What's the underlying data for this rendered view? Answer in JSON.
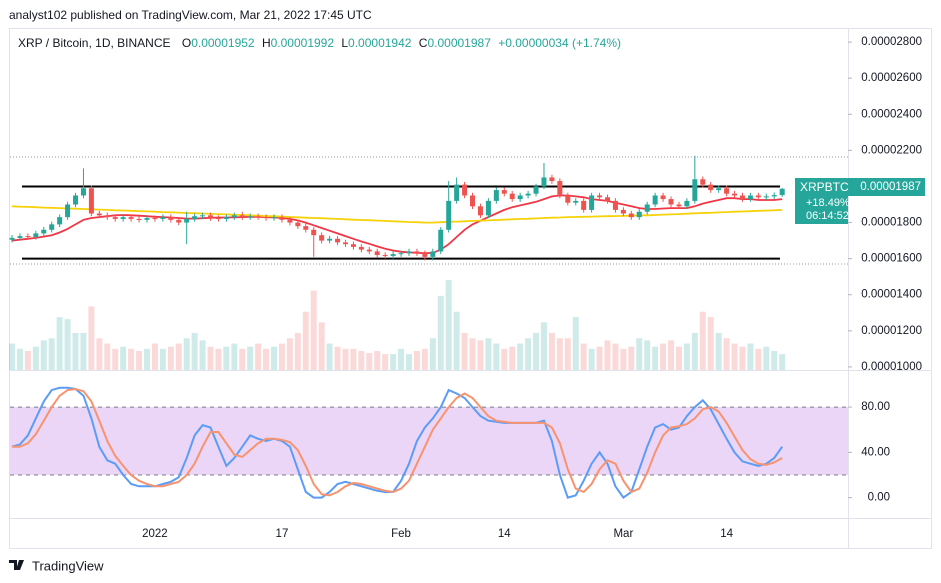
{
  "header": {
    "published": "analyst102 published on TradingView.com, Mar 21, 2022 17:45 UTC"
  },
  "legend": {
    "symbol": "XRP / Bitcoin, 1D, BINANCE",
    "fields": [
      {
        "key": "O",
        "value": "0.00001952"
      },
      {
        "key": "H",
        "value": "0.00001992"
      },
      {
        "key": "L",
        "value": "0.00001942"
      },
      {
        "key": "C",
        "value": "0.00001987"
      }
    ],
    "change": "+0.00000034 (+1.74%)"
  },
  "price_tag": {
    "symbol": "XRPBTC",
    "price": "0.00001987",
    "change": "+18.49%",
    "countdown": "06:14:52"
  },
  "footer": {
    "brand": "TradingView"
  },
  "chart_data": [
    {
      "type": "candlestick",
      "categories": [
        null,
        null,
        null,
        null,
        null,
        null,
        null,
        null,
        null,
        null,
        null,
        null,
        null,
        null,
        null,
        null,
        null,
        null,
        "2022",
        null,
        null,
        null,
        null,
        null,
        null,
        null,
        null,
        null,
        null,
        null,
        null,
        null,
        null,
        null,
        "17",
        null,
        null,
        null,
        null,
        null,
        null,
        null,
        null,
        null,
        null,
        null,
        null,
        null,
        null,
        "Feb",
        null,
        null,
        null,
        null,
        null,
        null,
        null,
        null,
        null,
        null,
        null,
        null,
        "14",
        null,
        null,
        null,
        null,
        null,
        null,
        null,
        null,
        null,
        null,
        null,
        null,
        null,
        null,
        "Mar",
        null,
        null,
        null,
        null,
        null,
        null,
        null,
        null,
        null,
        null,
        null,
        null,
        "14",
        null,
        null,
        null,
        null,
        null,
        null,
        null
      ],
      "open": [
        1.705e-05,
        1.715e-05,
        1.725e-05,
        1.72e-05,
        1.74e-05,
        1.76e-05,
        1.79e-05,
        1.83e-05,
        1.9e-05,
        1.95e-05,
        1.99e-05,
        1.85e-05,
        1.84e-05,
        1.83e-05,
        1.82e-05,
        1.83e-05,
        1.82e-05,
        1.815e-05,
        1.825e-05,
        1.82e-05,
        1.83e-05,
        1.815e-05,
        1.8e-05,
        1.82e-05,
        1.835e-05,
        1.84e-05,
        1.825e-05,
        1.82e-05,
        1.83e-05,
        1.84e-05,
        1.83e-05,
        1.835e-05,
        1.83e-05,
        1.825e-05,
        1.83e-05,
        1.815e-05,
        1.8e-05,
        1.78e-05,
        1.76e-05,
        1.73e-05,
        1.7e-05,
        1.71e-05,
        1.69e-05,
        1.68e-05,
        1.665e-05,
        1.65e-05,
        1.64e-05,
        1.62e-05,
        1.615e-05,
        1.625e-05,
        1.63e-05,
        1.64e-05,
        1.63e-05,
        1.61e-05,
        1.64e-05,
        1.76e-05,
        1.92e-05,
        2.01e-05,
        1.95e-05,
        1.89e-05,
        1.84e-05,
        1.92e-05,
        1.98e-05,
        1.96e-05,
        1.93e-05,
        1.95e-05,
        1.96e-05,
        2e-05,
        2.05e-05,
        2.03e-05,
        1.95e-05,
        1.91e-05,
        1.92e-05,
        1.87e-05,
        1.95e-05,
        1.94e-05,
        1.92e-05,
        1.87e-05,
        1.85e-05,
        1.83e-05,
        1.86e-05,
        1.9e-05,
        1.95e-05,
        1.93e-05,
        1.9e-05,
        1.89e-05,
        1.92e-05,
        2.04e-05,
        2.01e-05,
        1.98e-05,
        1.99e-05,
        1.96e-05,
        1.95e-05,
        1.93e-05,
        1.95e-05,
        1.94e-05,
        1.945e-05,
        1.952e-05
      ],
      "high": [
        1.73e-05,
        1.74e-05,
        1.74e-05,
        1.755e-05,
        1.775e-05,
        1.805e-05,
        1.845e-05,
        1.915e-05,
        1.965e-05,
        2.1e-05,
        2.005e-05,
        1.865e-05,
        1.855e-05,
        1.845e-05,
        1.845e-05,
        1.845e-05,
        1.835e-05,
        1.84e-05,
        1.84e-05,
        1.845e-05,
        1.845e-05,
        1.83e-05,
        1.86e-05,
        1.85e-05,
        1.855e-05,
        1.855e-05,
        1.84e-05,
        1.845e-05,
        1.855e-05,
        1.86e-05,
        1.85e-05,
        1.85e-05,
        1.845e-05,
        1.845e-05,
        1.845e-05,
        1.83e-05,
        1.815e-05,
        1.795e-05,
        1.775e-05,
        1.745e-05,
        1.725e-05,
        1.725e-05,
        1.705e-05,
        1.695e-05,
        1.68e-05,
        1.665e-05,
        1.655e-05,
        1.635e-05,
        1.64e-05,
        1.645e-05,
        1.655e-05,
        1.655e-05,
        1.645e-05,
        1.655e-05,
        1.775e-05,
        2.03e-05,
        2.05e-05,
        2.025e-05,
        1.965e-05,
        1.905e-05,
        1.935e-05,
        1.995e-05,
        1.995e-05,
        1.975e-05,
        1.965e-05,
        1.975e-05,
        2.015e-05,
        2.13e-05,
        2.065e-05,
        2.045e-05,
        1.965e-05,
        1.935e-05,
        1.935e-05,
        1.965e-05,
        1.965e-05,
        1.955e-05,
        1.935e-05,
        1.885e-05,
        1.865e-05,
        1.875e-05,
        1.915e-05,
        1.965e-05,
        1.965e-05,
        1.945e-05,
        1.915e-05,
        1.935e-05,
        2.17e-05,
        2.055e-05,
        2.025e-05,
        2.005e-05,
        2.005e-05,
        1.975e-05,
        1.965e-05,
        1.965e-05,
        1.965e-05,
        1.96e-05,
        1.967e-05,
        1.992e-05
      ],
      "low": [
        1.69e-05,
        1.7e-05,
        1.705e-05,
        1.705e-05,
        1.725e-05,
        1.745e-05,
        1.775e-05,
        1.815e-05,
        1.885e-05,
        1.935e-05,
        1.835e-05,
        1.825e-05,
        1.815e-05,
        1.805e-05,
        1.805e-05,
        1.805e-05,
        1.8e-05,
        1.8e-05,
        1.805e-05,
        1.805e-05,
        1.8e-05,
        1.785e-05,
        1.68e-05,
        1.805e-05,
        1.82e-05,
        1.81e-05,
        1.805e-05,
        1.805e-05,
        1.815e-05,
        1.815e-05,
        1.815e-05,
        1.815e-05,
        1.81e-05,
        1.81e-05,
        1.8e-05,
        1.785e-05,
        1.765e-05,
        1.745e-05,
        1.61e-05,
        1.685e-05,
        1.685e-05,
        1.675e-05,
        1.665e-05,
        1.65e-05,
        1.635e-05,
        1.625e-05,
        1.605e-05,
        1.6e-05,
        1.6e-05,
        1.61e-05,
        1.615e-05,
        1.615e-05,
        1.59e-05,
        1.59e-05,
        1.625e-05,
        1.745e-05,
        1.905e-05,
        1.935e-05,
        1.875e-05,
        1.825e-05,
        1.825e-05,
        1.905e-05,
        1.945e-05,
        1.915e-05,
        1.915e-05,
        1.935e-05,
        1.945e-05,
        1.985e-05,
        2.015e-05,
        1.935e-05,
        1.895e-05,
        1.895e-05,
        1.855e-05,
        1.855e-05,
        1.925e-05,
        1.905e-05,
        1.855e-05,
        1.835e-05,
        1.815e-05,
        1.815e-05,
        1.845e-05,
        1.885e-05,
        1.915e-05,
        1.885e-05,
        1.875e-05,
        1.875e-05,
        1.905e-05,
        1.995e-05,
        1.965e-05,
        1.965e-05,
        1.945e-05,
        1.935e-05,
        1.915e-05,
        1.915e-05,
        1.925e-05,
        1.925e-05,
        1.93e-05,
        1.942e-05
      ],
      "close": [
        1.715e-05,
        1.725e-05,
        1.72e-05,
        1.74e-05,
        1.76e-05,
        1.79e-05,
        1.83e-05,
        1.9e-05,
        1.95e-05,
        1.99e-05,
        1.85e-05,
        1.84e-05,
        1.83e-05,
        1.82e-05,
        1.83e-05,
        1.82e-05,
        1.815e-05,
        1.825e-05,
        1.82e-05,
        1.83e-05,
        1.815e-05,
        1.8e-05,
        1.82e-05,
        1.835e-05,
        1.84e-05,
        1.825e-05,
        1.82e-05,
        1.83e-05,
        1.84e-05,
        1.83e-05,
        1.835e-05,
        1.83e-05,
        1.825e-05,
        1.83e-05,
        1.815e-05,
        1.8e-05,
        1.78e-05,
        1.76e-05,
        1.73e-05,
        1.7e-05,
        1.71e-05,
        1.69e-05,
        1.68e-05,
        1.665e-05,
        1.65e-05,
        1.64e-05,
        1.62e-05,
        1.615e-05,
        1.625e-05,
        1.63e-05,
        1.64e-05,
        1.63e-05,
        1.61e-05,
        1.64e-05,
        1.76e-05,
        1.92e-05,
        2.01e-05,
        1.95e-05,
        1.89e-05,
        1.84e-05,
        1.92e-05,
        1.98e-05,
        1.96e-05,
        1.93e-05,
        1.95e-05,
        1.96e-05,
        2e-05,
        2.05e-05,
        2.03e-05,
        1.95e-05,
        1.91e-05,
        1.92e-05,
        1.87e-05,
        1.95e-05,
        1.94e-05,
        1.92e-05,
        1.87e-05,
        1.85e-05,
        1.83e-05,
        1.86e-05,
        1.9e-05,
        1.95e-05,
        1.93e-05,
        1.9e-05,
        1.89e-05,
        1.92e-05,
        2.04e-05,
        2.01e-05,
        1.98e-05,
        1.99e-05,
        1.96e-05,
        1.95e-05,
        1.93e-05,
        1.95e-05,
        1.94e-05,
        1.945e-05,
        1.952e-05,
        1.987e-05
      ],
      "volume": [
        25,
        20,
        18,
        22,
        28,
        30,
        50,
        48,
        35,
        35,
        60,
        30,
        25,
        20,
        22,
        20,
        18,
        20,
        25,
        20,
        22,
        25,
        30,
        35,
        28,
        22,
        20,
        22,
        25,
        20,
        22,
        25,
        20,
        22,
        25,
        30,
        35,
        55,
        75,
        45,
        25,
        22,
        20,
        20,
        18,
        16,
        18,
        15,
        15,
        20,
        15,
        18,
        20,
        30,
        70,
        85,
        55,
        35,
        30,
        28,
        30,
        25,
        20,
        22,
        25,
        30,
        35,
        45,
        35,
        30,
        30,
        50,
        25,
        20,
        22,
        28,
        25,
        20,
        22,
        30,
        28,
        22,
        25,
        28,
        22,
        25,
        35,
        55,
        50,
        35,
        30,
        25,
        22,
        25,
        20,
        22,
        18,
        15
      ],
      "up_color": "#26a69a",
      "down_color": "#ef5350",
      "series": [
        {
          "color": "#f23645",
          "values": [
            1.7e-05,
            1.705e-05,
            1.71e-05,
            1.715e-05,
            1.722e-05,
            1.73e-05,
            1.745e-05,
            1.765e-05,
            1.79e-05,
            1.815e-05,
            1.825e-05,
            1.83e-05,
            1.835e-05,
            1.84e-05,
            1.842e-05,
            1.84e-05,
            1.838e-05,
            1.835e-05,
            1.832e-05,
            1.83e-05,
            1.828e-05,
            1.825e-05,
            1.822e-05,
            1.822e-05,
            1.824e-05,
            1.826e-05,
            1.828e-05,
            1.828e-05,
            1.829e-05,
            1.83e-05,
            1.832e-05,
            1.832e-05,
            1.83e-05,
            1.828e-05,
            1.825e-05,
            1.82e-05,
            1.812e-05,
            1.8e-05,
            1.785e-05,
            1.77e-05,
            1.755e-05,
            1.74e-05,
            1.725e-05,
            1.71e-05,
            1.695e-05,
            1.682e-05,
            1.668e-05,
            1.655e-05,
            1.645e-05,
            1.638e-05,
            1.635e-05,
            1.632e-05,
            1.63e-05,
            1.632e-05,
            1.65e-05,
            1.68e-05,
            1.72e-05,
            1.76e-05,
            1.79e-05,
            1.81e-05,
            1.83e-05,
            1.85e-05,
            1.87e-05,
            1.885e-05,
            1.895e-05,
            1.905e-05,
            1.915e-05,
            1.93e-05,
            1.945e-05,
            1.95e-05,
            1.95e-05,
            1.945e-05,
            1.94e-05,
            1.93e-05,
            1.925e-05,
            1.92e-05,
            1.91e-05,
            1.9e-05,
            1.89e-05,
            1.88e-05,
            1.875e-05,
            1.875e-05,
            1.878e-05,
            1.88e-05,
            1.88e-05,
            1.88e-05,
            1.89e-05,
            1.905e-05,
            1.915e-05,
            1.925e-05,
            1.935e-05,
            1.935e-05,
            1.93e-05,
            1.93e-05,
            1.925e-05,
            1.925e-05,
            1.925e-05,
            1.93e-05
          ]
        },
        {
          "color": "#f5d20a",
          "values": [
            1.89e-05,
            1.888e-05,
            1.887e-05,
            1.885e-05,
            1.883e-05,
            1.882e-05,
            1.88e-05,
            1.878e-05,
            1.877e-05,
            1.875e-05,
            1.873e-05,
            1.872e-05,
            1.87e-05,
            1.868e-05,
            1.867e-05,
            1.865e-05,
            1.863e-05,
            1.862e-05,
            1.86e-05,
            1.858e-05,
            1.857e-05,
            1.855e-05,
            1.853e-05,
            1.852e-05,
            1.85e-05,
            1.848e-05,
            1.847e-05,
            1.845e-05,
            1.843e-05,
            1.842e-05,
            1.84e-05,
            1.838e-05,
            1.836e-05,
            1.835e-05,
            1.833e-05,
            1.831e-05,
            1.829e-05,
            1.827e-05,
            1.825e-05,
            1.824e-05,
            1.822e-05,
            1.82e-05,
            1.818e-05,
            1.816e-05,
            1.814e-05,
            1.813e-05,
            1.811e-05,
            1.809e-05,
            1.807e-05,
            1.805e-05,
            1.803e-05,
            1.802e-05,
            1.8e-05,
            1.8e-05,
            1.802e-05,
            1.804e-05,
            1.805e-05,
            1.807e-05,
            1.809e-05,
            1.811e-05,
            1.812e-05,
            1.814e-05,
            1.816e-05,
            1.818e-05,
            1.82e-05,
            1.821e-05,
            1.823e-05,
            1.825e-05,
            1.827e-05,
            1.828e-05,
            1.83e-05,
            1.831e-05,
            1.832e-05,
            1.833e-05,
            1.834e-05,
            1.835e-05,
            1.836e-05,
            1.837e-05,
            1.838e-05,
            1.839e-05,
            1.84e-05,
            1.842e-05,
            1.844e-05,
            1.845e-05,
            1.847e-05,
            1.849e-05,
            1.851e-05,
            1.853e-05,
            1.854e-05,
            1.856e-05,
            1.858e-05,
            1.86e-05,
            1.861e-05,
            1.863e-05,
            1.865e-05,
            1.866e-05,
            1.868e-05,
            1.87e-05
          ]
        }
      ],
      "levels": [
        2e-05,
        1.6e-05
      ],
      "dotted_levels": [
        2.163e-05,
        1.57e-05
      ],
      "ylim": [
        9.83e-06,
        2.878e-05
      ],
      "yticks": [
        {
          "value": 2.8e-05,
          "label": "0.00002800"
        },
        {
          "value": 2.6e-05,
          "label": "0.00002600"
        },
        {
          "value": 2.4e-05,
          "label": "0.00002400"
        },
        {
          "value": 2.2e-05,
          "label": "0.00002200"
        },
        {
          "value": 1.8e-05,
          "label": "0.00001800"
        },
        {
          "value": 1.6e-05,
          "label": "0.00001600"
        },
        {
          "value": 1.4e-05,
          "label": "0.00001400"
        },
        {
          "value": 1.2e-05,
          "label": "0.00001200"
        },
        {
          "value": 1e-05,
          "label": "0.00001000"
        }
      ]
    },
    {
      "type": "line",
      "series": [
        {
          "color": "#5b9cf6",
          "values": [
            45,
            47,
            55,
            70,
            85,
            95,
            97,
            97,
            96,
            90,
            70,
            45,
            33,
            30,
            20,
            12,
            10,
            10,
            10,
            12,
            14,
            18,
            35,
            55,
            64,
            62,
            45,
            28,
            35,
            45,
            55,
            52,
            50,
            52,
            50,
            45,
            25,
            5,
            0,
            0,
            5,
            12,
            14,
            12,
            10,
            8,
            6,
            5,
            5,
            15,
            30,
            50,
            62,
            70,
            80,
            95,
            92,
            88,
            80,
            72,
            68,
            67,
            66,
            66,
            66,
            66,
            66,
            68,
            50,
            20,
            0,
            2,
            15,
            30,
            40,
            30,
            10,
            0,
            5,
            25,
            45,
            62,
            65,
            60,
            62,
            72,
            80,
            86,
            78,
            65,
            52,
            40,
            32,
            30,
            28,
            30,
            35,
            45
          ]
        },
        {
          "color": "#f7936f",
          "values": [
            45,
            45,
            48,
            56,
            68,
            80,
            90,
            95,
            96,
            94,
            85,
            68,
            50,
            37,
            28,
            20,
            15,
            12,
            10,
            10,
            12,
            14,
            20,
            30,
            45,
            58,
            58,
            48,
            38,
            36,
            42,
            48,
            52,
            52,
            51,
            49,
            42,
            28,
            12,
            3,
            2,
            5,
            10,
            13,
            12,
            10,
            8,
            6,
            5,
            8,
            15,
            30,
            45,
            60,
            70,
            80,
            88,
            92,
            88,
            80,
            72,
            68,
            67,
            66,
            66,
            66,
            66,
            66,
            62,
            48,
            25,
            8,
            5,
            12,
            25,
            33,
            30,
            15,
            5,
            8,
            22,
            40,
            55,
            62,
            63,
            65,
            70,
            78,
            80,
            76,
            66,
            54,
            42,
            34,
            30,
            29,
            31,
            35
          ]
        }
      ],
      "band": [
        20,
        80
      ],
      "ylim": [
        -18,
        111
      ],
      "yticks": [
        {
          "value": 80,
          "label": "80.00"
        },
        {
          "value": 40,
          "label": "40.00"
        },
        {
          "value": 0,
          "label": "0.00"
        }
      ]
    }
  ]
}
